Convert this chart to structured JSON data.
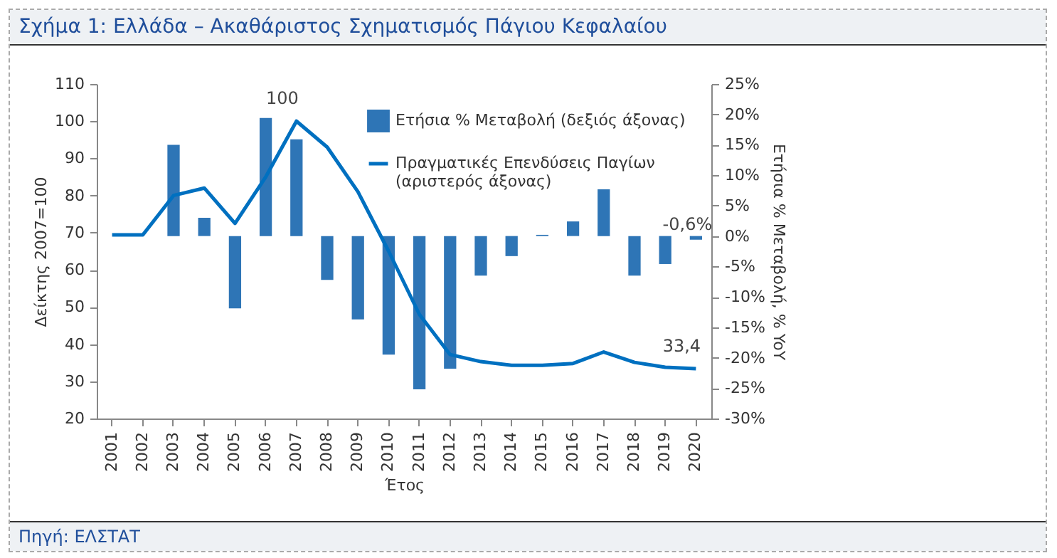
{
  "chart_data": {
    "type": "bar",
    "title": "Σχήμα 1: Ελλάδα – Ακαθάριστος Σχηματισμός Πάγιου Κεφαλαίου",
    "annotations": [
      "Πηγή: ΕΛΣΤΑΤ"
    ],
    "xlabel": "Έτος",
    "ylabel": "Δείκτης 2007=100",
    "y2label": "Ετήσια % Μεταβολή, % YoY",
    "categories": [
      "2001",
      "2002",
      "2003",
      "2004",
      "2005",
      "2006",
      "2007",
      "2008",
      "2009",
      "2010",
      "2011",
      "2012",
      "2013",
      "2014",
      "2015",
      "2016",
      "2017",
      "2018",
      "2019",
      "2020"
    ],
    "series": [
      {
        "name": "Ετήσια % Μεταβολή (δεξιός άξονας)",
        "axis": "y2",
        "color": "#2e75b6",
        "values": [
          null,
          null,
          15.0,
          3.0,
          -11.9,
          19.4,
          15.9,
          -7.2,
          -13.7,
          -19.5,
          -25.2,
          -21.8,
          -6.5,
          -3.3,
          0.2,
          2.4,
          8.0,
          -6.5,
          -4.6,
          -0.6
        ],
        "value_labels": [
          null,
          null,
          null,
          null,
          null,
          null,
          null,
          null,
          null,
          null,
          null,
          null,
          null,
          null,
          null,
          null,
          null,
          null,
          null,
          "-0,6%"
        ]
      },
      {
        "name": "Πραγματικές Επενδύσεις Παγίων (αριστερός άξονας)",
        "type": "line",
        "color": "#0070c0",
        "values": [
          69.4,
          69.4,
          80,
          82,
          72.5,
          85,
          100,
          93,
          81,
          65,
          48,
          37.2,
          35.3,
          34.3,
          34.3,
          34.8,
          37.9,
          35.1,
          33.8,
          33.4
        ],
        "value_labels": [
          null,
          null,
          null,
          null,
          null,
          null,
          "100",
          null,
          null,
          null,
          null,
          null,
          null,
          null,
          null,
          null,
          null,
          null,
          null,
          "33,4"
        ]
      }
    ],
    "ylim": [
      20,
      110
    ],
    "yticks": [
      20,
      30,
      40,
      50,
      60,
      70,
      80,
      90,
      100,
      110
    ],
    "y2lim": [
      -30,
      25
    ],
    "y2ticks": [
      {
        "value": -30,
        "label": "-30%"
      },
      {
        "value": -25,
        "label": "-25%"
      },
      {
        "value": -20,
        "label": "-20%"
      },
      {
        "value": -15,
        "label": "-15%"
      },
      {
        "value": -10,
        "label": "-10%"
      },
      {
        "value": -5,
        "label": "-5%"
      },
      {
        "value": 0,
        "label": "0%"
      },
      {
        "value": 5,
        "label": "5%"
      },
      {
        "value": 10,
        "label": "10%"
      },
      {
        "value": 15,
        "label": "15%"
      },
      {
        "value": 20,
        "label": "20%"
      },
      {
        "value": 25,
        "label": "25%"
      }
    ],
    "grid": false,
    "legend": "top right"
  }
}
